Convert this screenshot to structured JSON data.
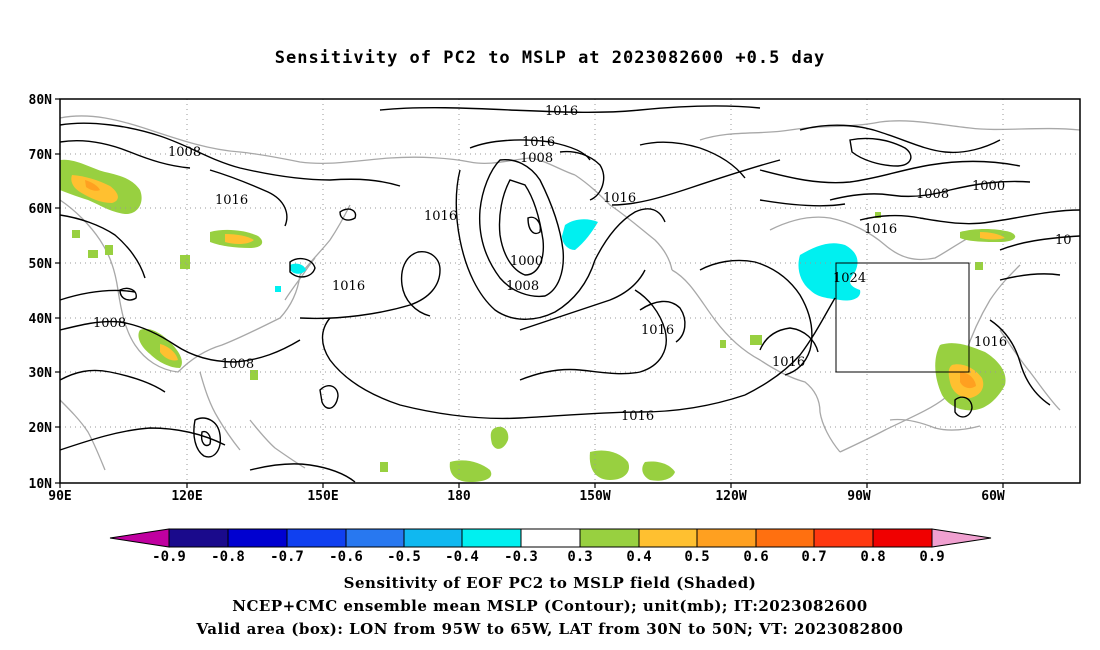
{
  "title": "Sensitivity of PC2 to MSLP at 2023082600 +0.5 day",
  "map": {
    "lat_labels": [
      "80N",
      "70N",
      "60N",
      "50N",
      "40N",
      "30N",
      "20N",
      "10N"
    ],
    "lon_labels": [
      "90E",
      "120E",
      "150E",
      "180",
      "150W",
      "120W",
      "90W",
      "60W"
    ],
    "contour_labels": [
      {
        "text": "1016"
      },
      {
        "text": "1016"
      },
      {
        "text": "1008"
      },
      {
        "text": "1008"
      },
      {
        "text": "1016"
      },
      {
        "text": "1016"
      },
      {
        "text": "1016"
      },
      {
        "text": "1008"
      },
      {
        "text": "1000"
      },
      {
        "text": "1016"
      },
      {
        "text": "1016"
      },
      {
        "text": "1000"
      },
      {
        "text": "1008"
      },
      {
        "text": "1016"
      },
      {
        "text": "1008"
      },
      {
        "text": "1008"
      },
      {
        "text": "1016"
      },
      {
        "text": "1016"
      },
      {
        "text": "1024"
      },
      {
        "text": "1016"
      },
      {
        "text": "1016"
      },
      {
        "text": "10"
      }
    ],
    "box": {
      "lon_from": "95W",
      "lon_to": "65W",
      "lat_from": "30N",
      "lat_to": "50N"
    }
  },
  "colorbar": {
    "labels": [
      "-0.9",
      "-0.8",
      "-0.7",
      "-0.6",
      "-0.5",
      "-0.4",
      "-0.3",
      "0.3",
      "0.4",
      "0.5",
      "0.6",
      "0.7",
      "0.8",
      "0.9"
    ],
    "colors": [
      "#1a0a8c",
      "#0000d0",
      "#1040f0",
      "#2878f0",
      "#10b8f0",
      "#00f0f0",
      "#ffffff",
      "#98d040",
      "#ffc030",
      "#ffa020",
      "#ff7010",
      "#ff3810",
      "#f00000"
    ],
    "low_end_color": "#c000a0",
    "high_end_color": "#f0a0d0"
  },
  "captions": [
    "Sensitivity of EOF PC2 to MSLP field (Shaded)",
    "NCEP+CMC ensemble mean MSLP (Contour); unit(mb); IT:2023082600",
    "Valid area (box): LON from 95W to 65W, LAT from 30N to 50N; VT: 2023082800"
  ]
}
